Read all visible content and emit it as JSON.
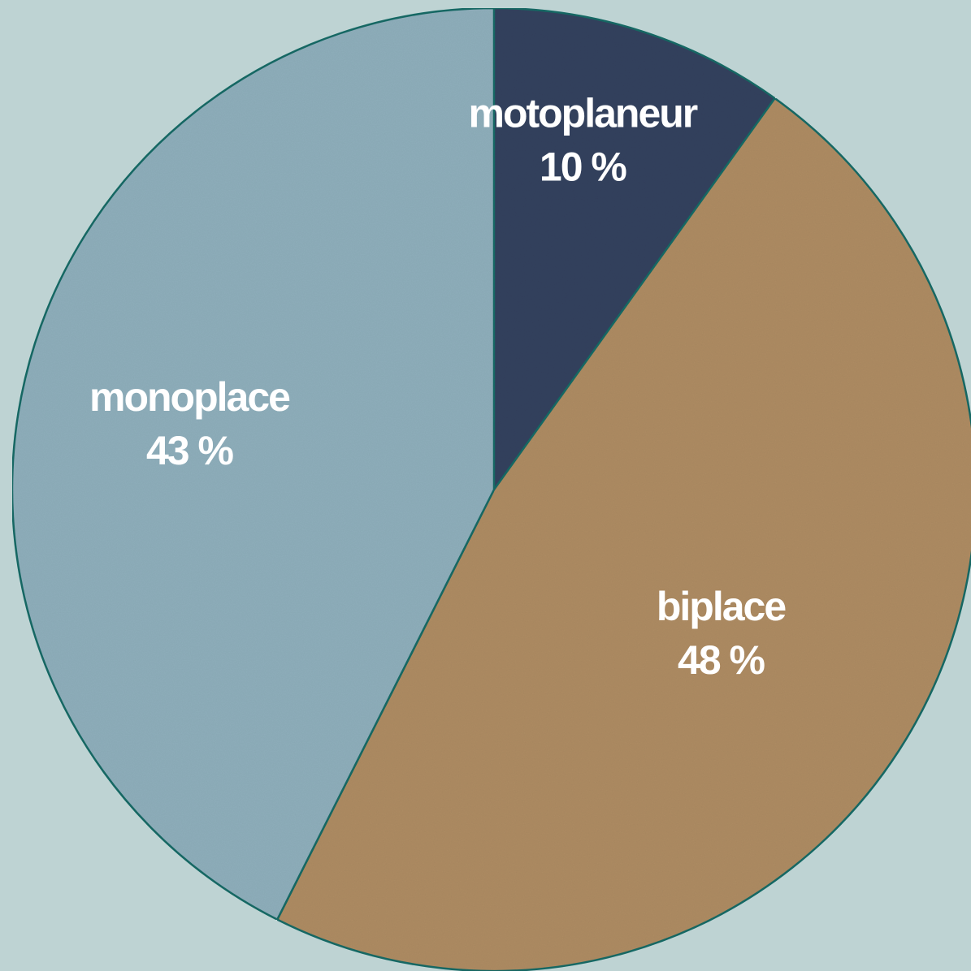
{
  "chart_data": {
    "type": "pie",
    "title": "",
    "slices": [
      {
        "label": "motoplaneur",
        "value": 10,
        "value_label": "10 %",
        "color": "#36435e"
      },
      {
        "label": "biplace",
        "value": 48,
        "value_label": "48 %",
        "color": "#ae8c64"
      },
      {
        "label": "monoplace",
        "value": 43,
        "value_label": "43 %",
        "color": "#8fafbb"
      }
    ],
    "start_angle": "12 o'clock",
    "direction": "clockwise",
    "legend": "none",
    "labels": "inside slices",
    "slice_border_color": "#1a6a66",
    "background_color": "#bed3d3"
  }
}
